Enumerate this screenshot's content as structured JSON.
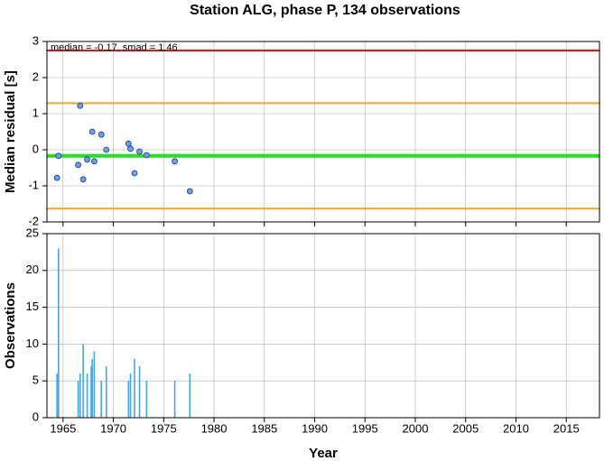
{
  "chart_data": [
    {
      "type": "scatter",
      "title": "Station ALG, phase P, 134 observations",
      "ylabel": "Median residual [s]",
      "annotation": "median = -0.17, smad = 1.46",
      "x": [
        1964.4,
        1964.55,
        1966.5,
        1966.7,
        1967.0,
        1967.4,
        1967.9,
        1968.1,
        1968.8,
        1969.3,
        1971.5,
        1971.7,
        1972.1,
        1972.6,
        1973.3,
        1976.1,
        1977.6
      ],
      "values": [
        -0.78,
        -0.17,
        -0.42,
        1.22,
        -0.82,
        -0.27,
        0.5,
        -0.32,
        0.42,
        0.0,
        0.17,
        0.03,
        -0.65,
        -0.05,
        -0.15,
        -0.32,
        -1.15
      ],
      "color": "#6f9ff5",
      "hlines": [
        {
          "value": 2.75,
          "color": "#e8141c"
        },
        {
          "value": 1.29,
          "color": "#f5a623"
        },
        {
          "value": -0.17,
          "color": "#22e022"
        },
        {
          "value": -1.63,
          "color": "#f5a623"
        }
      ],
      "xlim": [
        1963.4,
        2018.3
      ],
      "xticks": [
        1965,
        1970,
        1975,
        1980,
        1985,
        1990,
        1995,
        2000,
        2005,
        2010,
        2015
      ],
      "ylim": [
        -2,
        3
      ],
      "yticks": [
        -2,
        -1,
        0,
        1,
        2,
        3
      ],
      "grid": true
    },
    {
      "type": "bar",
      "ylabel": "Observations",
      "xlabel": "Year",
      "x": [
        1964.4,
        1964.55,
        1966.5,
        1966.7,
        1967.0,
        1967.4,
        1967.8,
        1967.9,
        1968.1,
        1968.8,
        1969.3,
        1971.5,
        1971.7,
        1972.1,
        1972.6,
        1973.3,
        1976.1,
        1977.6
      ],
      "values": [
        6,
        23,
        5,
        6,
        10,
        6,
        7,
        8,
        9,
        5,
        7,
        5,
        6,
        8,
        7,
        5,
        5,
        6
      ],
      "color": "#4aa3e8",
      "xlim": [
        1963.4,
        2018.3
      ],
      "xticks": [
        1965,
        1970,
        1975,
        1980,
        1985,
        1990,
        1995,
        2000,
        2005,
        2010,
        2015
      ],
      "ylim": [
        0,
        25
      ],
      "yticks": [
        0,
        5,
        10,
        15,
        20,
        25
      ],
      "grid": true
    }
  ]
}
